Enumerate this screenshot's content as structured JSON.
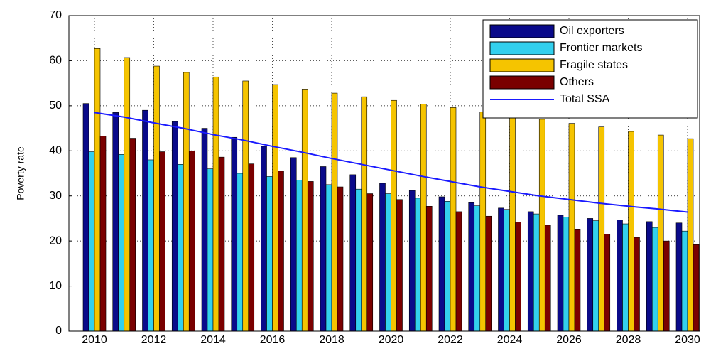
{
  "chart_data": {
    "type": "bar",
    "y_label": "Poverty rate",
    "categories": [
      "2010",
      null,
      "2012",
      null,
      "2014",
      null,
      "2016",
      null,
      "2018",
      null,
      "2020",
      null,
      "2022",
      null,
      "2024",
      null,
      "2026",
      null,
      "2028",
      null,
      "2030"
    ],
    "series": [
      {
        "name": "Oil exporters",
        "color": "#0a0a8a",
        "values": [
          50.5,
          48.5,
          49,
          46.5,
          45,
          43,
          41,
          38.5,
          36.5,
          34.7,
          32.8,
          31.2,
          29.8,
          28.5,
          27.3,
          26.5,
          25.7,
          25,
          24.7,
          24.3,
          24
        ]
      },
      {
        "name": "Frontier markets",
        "color": "#33d0ee",
        "values": [
          39.8,
          39.2,
          38,
          37,
          36,
          35,
          34.3,
          33.5,
          32.5,
          31.5,
          30.5,
          29.5,
          28.8,
          27.8,
          27,
          26,
          25.3,
          24.5,
          23.8,
          23,
          22.2
        ]
      },
      {
        "name": "Fragile states",
        "color": "#f5c400",
        "values": [
          62.7,
          60.7,
          58.8,
          57.4,
          56.4,
          55.5,
          54.7,
          53.7,
          52.8,
          52,
          51.2,
          50.4,
          49.6,
          48.6,
          47.7,
          47,
          46.1,
          45.3,
          44.3,
          43.5,
          42.7
        ]
      },
      {
        "name": "Others",
        "color": "#7a0000",
        "values": [
          43.3,
          42.8,
          39.8,
          40,
          38.6,
          37.1,
          35.5,
          33.2,
          32,
          30.5,
          29.2,
          27.7,
          26.5,
          25.5,
          24.2,
          23.5,
          22.5,
          21.5,
          20.8,
          20,
          19.2
        ]
      },
      {
        "name": "Total SSA",
        "color": "#1a1aff",
        "type": "line",
        "values": [
          48.5,
          47.5,
          46.2,
          45,
          43.6,
          42.4,
          41,
          39.7,
          38.3,
          37,
          35.7,
          34.4,
          33.2,
          32,
          31,
          30,
          29.2,
          28.4,
          27.7,
          27.1,
          26.4
        ]
      }
    ],
    "ylim": [
      0,
      70
    ],
    "yticks": [
      0,
      10,
      20,
      30,
      40,
      50,
      60,
      70
    ],
    "grid": true
  }
}
